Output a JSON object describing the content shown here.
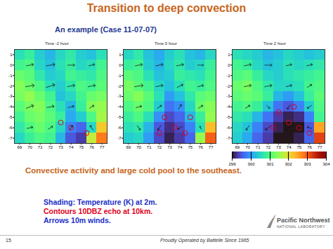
{
  "title": "Transition to deep convection",
  "subtitle": "An example (Case 11-07-07)",
  "chart_data": [
    {
      "type": "heatmap",
      "title": "Time -2 hour",
      "x_bins": [
        68.5,
        69.5,
        70.5,
        71.5,
        72.5,
        73.5,
        74.5,
        75.5,
        76.5,
        77.5
      ],
      "y_bins": [
        1.5,
        0.5,
        -0.5,
        -1.5,
        -2.5,
        -3.5,
        -4.5,
        -5.5,
        -6.5,
        -7.5
      ],
      "values": [
        [
          300.6,
          300.8,
          300.4,
          300.2,
          300.5,
          300.7,
          300.4,
          300.3,
          300.6
        ],
        [
          300.9,
          301.0,
          300.5,
          300.3,
          300.6,
          300.8,
          300.5,
          300.6,
          300.9
        ],
        [
          301.2,
          301.1,
          300.7,
          300.4,
          300.5,
          300.9,
          300.8,
          300.7,
          301.0
        ],
        [
          301.4,
          301.2,
          301.0,
          300.6,
          300.4,
          300.7,
          301.0,
          300.9,
          301.1
        ],
        [
          301.3,
          301.5,
          301.2,
          300.9,
          300.3,
          300.5,
          300.9,
          301.2,
          301.3
        ],
        [
          301.1,
          301.3,
          301.4,
          301.0,
          300.6,
          300.2,
          300.8,
          301.4,
          301.5
        ],
        [
          300.9,
          301.2,
          301.3,
          301.1,
          300.8,
          300.1,
          300.4,
          301.0,
          301.6
        ],
        [
          300.7,
          301.0,
          301.2,
          301.0,
          300.5,
          299.8,
          299.6,
          300.5,
          302.2
        ],
        [
          300.5,
          300.8,
          301.0,
          300.9,
          300.2,
          299.5,
          299.3,
          301.8,
          302.8
        ]
      ],
      "xlim": [
        68.5,
        77.5
      ],
      "ylim": [
        -7.5,
        1.5
      ],
      "xticks": [
        69,
        70,
        71,
        72,
        73,
        74,
        75,
        76,
        77
      ],
      "yticks": [
        1,
        0,
        -1,
        -2,
        -3,
        -4,
        -5,
        -6,
        -7
      ],
      "echo": [
        [
          74,
          -6
        ],
        [
          75.5,
          -6.5
        ],
        [
          73,
          -5.5
        ]
      ],
      "wind_x": [
        70,
        72,
        74,
        76
      ],
      "wind_y": [
        0,
        -2,
        -4,
        -6
      ],
      "wind_u": [
        [
          5,
          6,
          5,
          4
        ],
        [
          6,
          6,
          5,
          5
        ],
        [
          5,
          5,
          4,
          3
        ],
        [
          4,
          3,
          2,
          -2
        ]
      ],
      "wind_v": [
        [
          1,
          1,
          0,
          1
        ],
        [
          1,
          2,
          1,
          1
        ],
        [
          2,
          1,
          1,
          2
        ],
        [
          1,
          2,
          3,
          3
        ]
      ]
    },
    {
      "type": "heatmap",
      "title": "Time 0 hour",
      "x_bins": [
        68.5,
        69.5,
        70.5,
        71.5,
        72.5,
        73.5,
        74.5,
        75.5,
        76.5,
        77.5
      ],
      "y_bins": [
        1.5,
        0.5,
        -0.5,
        -1.5,
        -2.5,
        -3.5,
        -4.5,
        -5.5,
        -6.5,
        -7.5
      ],
      "values": [
        [
          300.5,
          300.7,
          300.3,
          300.1,
          300.4,
          300.6,
          300.3,
          300.2,
          300.5
        ],
        [
          300.8,
          300.9,
          300.4,
          300.2,
          300.5,
          300.7,
          300.4,
          300.5,
          300.8
        ],
        [
          301.1,
          301.0,
          300.6,
          300.3,
          300.4,
          300.8,
          300.7,
          300.6,
          300.9
        ],
        [
          301.3,
          301.1,
          300.9,
          300.5,
          300.3,
          300.6,
          300.9,
          300.8,
          301.0
        ],
        [
          301.2,
          301.4,
          301.1,
          300.6,
          300.0,
          300.3,
          300.7,
          301.1,
          301.2
        ],
        [
          301.0,
          301.2,
          301.0,
          300.4,
          299.7,
          299.9,
          300.5,
          301.2,
          301.4
        ],
        [
          300.8,
          301.0,
          300.6,
          299.9,
          299.4,
          299.6,
          300.2,
          300.8,
          301.5
        ],
        [
          300.6,
          300.7,
          300.2,
          299.5,
          299.2,
          299.4,
          299.8,
          300.6,
          302.3
        ],
        [
          300.4,
          300.5,
          300.0,
          299.4,
          299.1,
          299.3,
          299.6,
          301.5,
          303.0
        ]
      ],
      "xlim": [
        68.5,
        77.5
      ],
      "ylim": [
        -7.5,
        1.5
      ],
      "xticks": [
        69,
        70,
        71,
        72,
        73,
        74,
        75,
        76,
        77
      ],
      "yticks": [
        1,
        0,
        -1,
        -2,
        -3,
        -4,
        -5,
        -6,
        -7
      ],
      "echo": [
        [
          72.5,
          -5
        ],
        [
          73.5,
          -6
        ],
        [
          74.5,
          -6.5
        ],
        [
          72,
          -6.5
        ],
        [
          75,
          -5
        ]
      ],
      "wind_x": [
        70,
        72,
        74,
        76
      ],
      "wind_y": [
        0,
        -2,
        -4,
        -6
      ],
      "wind_u": [
        [
          5,
          5,
          5,
          4
        ],
        [
          6,
          5,
          4,
          4
        ],
        [
          4,
          3,
          2,
          3
        ],
        [
          2,
          -2,
          -3,
          -1
        ]
      ],
      "wind_v": [
        [
          1,
          1,
          1,
          0
        ],
        [
          1,
          1,
          2,
          1
        ],
        [
          1,
          2,
          3,
          2
        ],
        [
          -3,
          -3,
          -2,
          2
        ]
      ]
    },
    {
      "type": "heatmap",
      "title": "Time 2 hour",
      "x_bins": [
        68.5,
        69.5,
        70.5,
        71.5,
        72.5,
        73.5,
        74.5,
        75.5,
        76.5,
        77.5
      ],
      "y_bins": [
        1.5,
        0.5,
        -0.5,
        -1.5,
        -2.5,
        -3.5,
        -4.5,
        -5.5,
        -6.5,
        -7.5
      ],
      "values": [
        [
          300.6,
          300.5,
          300.4,
          300.2,
          300.3,
          300.5,
          300.4,
          300.3,
          300.4
        ],
        [
          300.9,
          300.8,
          300.5,
          300.3,
          300.4,
          300.6,
          300.5,
          300.6,
          300.7
        ],
        [
          301.0,
          301.1,
          300.8,
          300.5,
          300.4,
          300.6,
          300.7,
          300.8,
          300.9
        ],
        [
          301.2,
          301.3,
          301.0,
          300.7,
          300.5,
          300.5,
          300.6,
          300.9,
          301.0
        ],
        [
          301.1,
          301.2,
          301.1,
          300.8,
          300.2,
          300.0,
          300.3,
          300.8,
          301.1
        ],
        [
          300.9,
          301.0,
          300.8,
          300.3,
          299.7,
          299.5,
          299.8,
          300.4,
          301.0
        ],
        [
          300.7,
          300.6,
          300.2,
          299.7,
          299.3,
          299.1,
          299.2,
          299.8,
          300.9
        ],
        [
          300.5,
          300.3,
          299.8,
          299.4,
          299.1,
          299.0,
          299.0,
          299.5,
          302.5
        ],
        [
          300.4,
          300.1,
          299.6,
          299.3,
          299.0,
          299.0,
          299.1,
          299.6,
          303.2
        ]
      ],
      "xlim": [
        68.5,
        77.5
      ],
      "ylim": [
        -7.5,
        1.5
      ],
      "xticks": [
        69,
        70,
        71,
        72,
        73,
        74,
        75,
        76,
        77
      ],
      "yticks": [
        1,
        0,
        -1,
        -2,
        -3,
        -4,
        -5,
        -6,
        -7
      ],
      "echo": [
        [
          73,
          -4.5
        ],
        [
          74,
          -5.5
        ],
        [
          75,
          -6
        ],
        [
          72.5,
          -6
        ],
        [
          76,
          -6.5
        ],
        [
          74.5,
          -4
        ]
      ],
      "wind_x": [
        70,
        72,
        74,
        76
      ],
      "wind_y": [
        0,
        -2,
        -4,
        -6
      ],
      "wind_u": [
        [
          5,
          5,
          4,
          4
        ],
        [
          5,
          5,
          4,
          3
        ],
        [
          3,
          2,
          -2,
          -3
        ],
        [
          -2,
          -4,
          -5,
          -3
        ]
      ],
      "wind_v": [
        [
          1,
          0,
          1,
          1
        ],
        [
          1,
          1,
          1,
          2
        ],
        [
          2,
          -2,
          -3,
          -2
        ],
        [
          -3,
          -3,
          -2,
          1
        ]
      ]
    }
  ],
  "colorbar": {
    "range": [
      299,
      304
    ],
    "ticks": [
      299,
      300,
      301,
      302,
      303,
      304
    ]
  },
  "caption": "Convective activity and large cold pool to the southeast.",
  "notes": [
    {
      "text": "Shading: Temperature (K) at 2m.",
      "color": "#1a2fc9"
    },
    {
      "text": "Contours 10DBZ echo at 10km.",
      "color": "#e0001a"
    },
    {
      "text": "Arrows 10m winds.",
      "color": "#1a2fc9"
    }
  ],
  "footer": {
    "page": "15",
    "tagline": "Proudly Operated by Battelle Since 1965",
    "logo": [
      "Pacific Northwest",
      "NATIONAL LABORATORY"
    ]
  }
}
